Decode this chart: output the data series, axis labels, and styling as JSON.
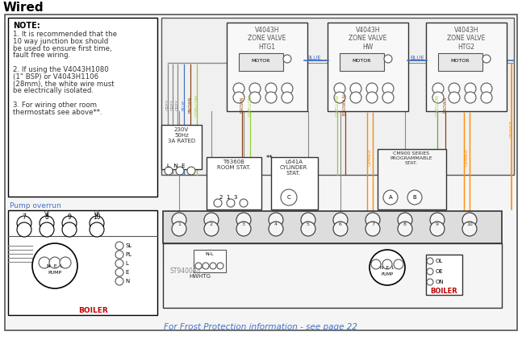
{
  "title": "Wired",
  "bg_color": "#ffffff",
  "note_text": "NOTE:",
  "note_lines": [
    "1. It is recommended that the",
    "10 way junction box should",
    "be used to ensure first time,",
    "fault free wiring.",
    "",
    "2. If using the V4043H1080",
    "(1\" BSP) or V4043H1106",
    "(28mm), the white wire must",
    "be electrically isolated.",
    "",
    "3. For wiring other room",
    "thermostats see above**."
  ],
  "pump_overrun_label": "Pump overrun",
  "frost_text": "For Frost Protection information - see page 22",
  "supply_label": "230V\n50Hz\n3A RATED",
  "stat1_label": "T6360B\nROOM STAT.",
  "stat2_label": "L641A\nCYLINDER\nSTAT.",
  "cm900_label": "CM900 SERIES\nPROGRAMMABLE\nSTAT.",
  "st9400_label": "ST9400A/C",
  "hw_htg_label": "HWHTG",
  "boiler_label": "BOILER",
  "zone_labels": [
    "V4043H\nZONE VALVE\nHTG1",
    "V4043H\nZONE VALVE\nHW",
    "V4043H\nZONE VALVE\nHTG2"
  ],
  "wire_colors": {
    "grey": "#888888",
    "blue": "#4472c4",
    "brown": "#8B4513",
    "gyellow": "#9acd32",
    "orange": "#ff8c00",
    "black": "#222222"
  },
  "text_blue": "#4472c4",
  "text_red": "#c00000"
}
